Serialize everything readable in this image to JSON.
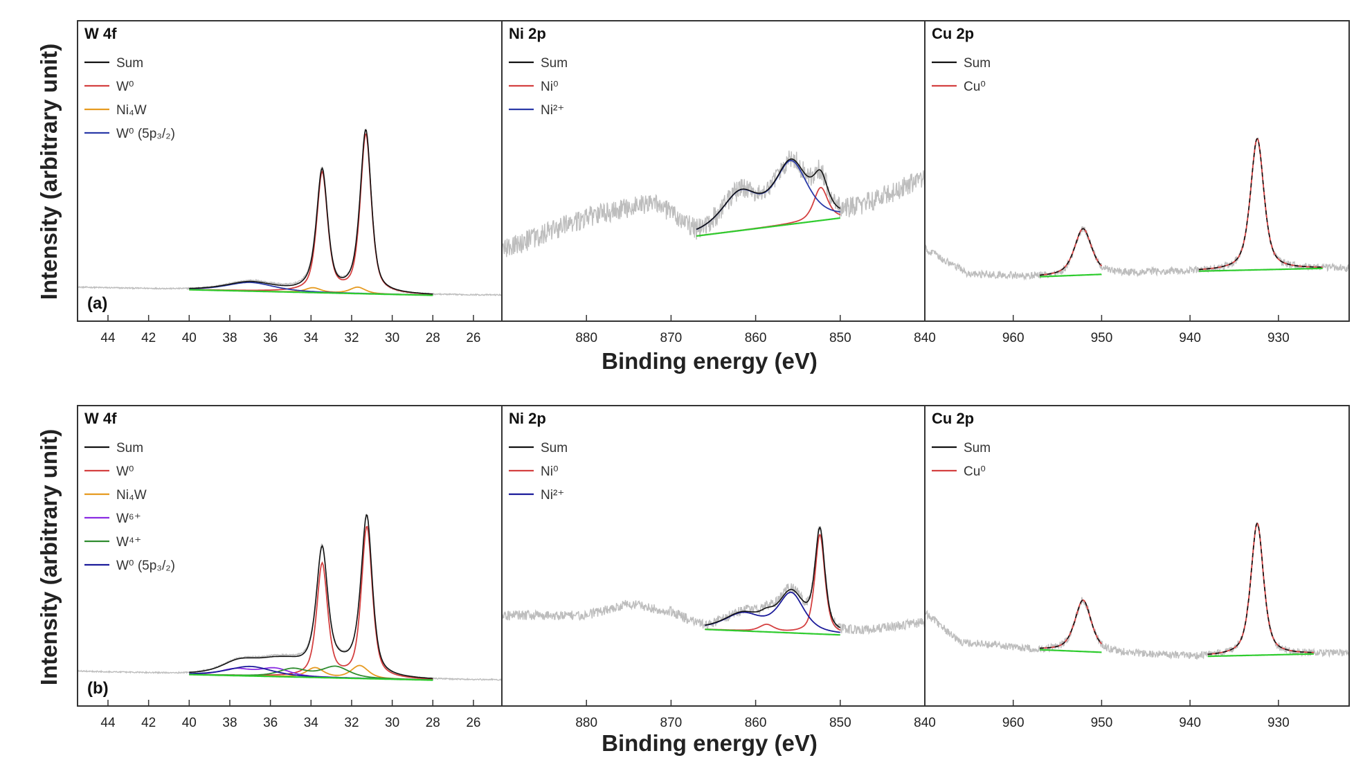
{
  "chart_data": {
    "type": "line",
    "ylabel": "Intensity (arbitrary unit)",
    "xlabel": "Binding energy (eV)",
    "rows": [
      {
        "label": "(a)",
        "panels": [
          {
            "title": "W 4f",
            "xlim": [
              45.5,
              24.6
            ],
            "ticks": [
              "44",
              "42",
              "40",
              "38",
              "36",
              "34",
              "32",
              "30",
              "28",
              "26"
            ],
            "tick_values": [
              44,
              42,
              40,
              38,
              36,
              34,
              32,
              30,
              28,
              26
            ],
            "legend": [
              {
                "label": "Sum",
                "color": "#111111"
              },
              {
                "label": "W⁰",
                "color": "#d44040"
              },
              {
                "label": "Ni₄W",
                "color": "#e69a20"
              },
              {
                "label": "W⁰ (5p₃/₂)",
                "color": "#2a3aa8"
              }
            ],
            "noise": 0.004,
            "raw_range": [
              45.5,
              24.6
            ],
            "fit_range": [
              40.0,
              28.0
            ],
            "baseline": [
              [
                45.5,
                0.05
              ],
              [
                40.0,
                0.035
              ],
              [
                34.0,
                0.03
              ],
              [
                30.0,
                0.0
              ],
              [
                24.6,
                0.0
              ]
            ],
            "components": [
              {
                "name": "W⁰",
                "color": "#d44040",
                "peaks": [
                  {
                    "x": 31.3,
                    "h": 1.0,
                    "w": 0.32
                  },
                  {
                    "x": 33.45,
                    "h": 0.75,
                    "w": 0.32
                  }
                ]
              },
              {
                "name": "Ni₄W",
                "color": "#e69a20",
                "peaks": [
                  {
                    "x": 31.7,
                    "h": 0.04,
                    "w": 0.45
                  },
                  {
                    "x": 33.9,
                    "h": 0.03,
                    "w": 0.45
                  }
                ]
              },
              {
                "name": "W⁰ (5p₃/₂)",
                "color": "#2a3aa8",
                "peaks": [
                  {
                    "x": 37.0,
                    "h": 0.055,
                    "w": 1.4
                  }
                ]
              }
            ],
            "background_color": "#2ecc2e"
          },
          {
            "title": "Ni 2p",
            "xlim": [
              890,
              840
            ],
            "ticks": [
              "880",
              "870",
              "860",
              "850",
              "840"
            ],
            "tick_values": [
              880,
              870,
              860,
              850,
              840
            ],
            "legend": [
              {
                "label": "Sum",
                "color": "#111111"
              },
              {
                "label": "Ni⁰",
                "color": "#d44040"
              },
              {
                "label": "Ni²⁺",
                "color": "#2a3aa8"
              }
            ],
            "noise": 0.07,
            "raw_range": [
              890,
              840
            ],
            "fit_range": [
              867,
              850
            ],
            "baseline": [
              [
                890,
                0.1
              ],
              [
                880,
                0.32
              ],
              [
                872,
                0.42
              ],
              [
                867,
                0.2
              ],
              [
                850,
                0.32
              ],
              [
                845,
                0.45
              ],
              [
                840,
                0.58
              ]
            ],
            "components": [
              {
                "name": "Ni⁰",
                "color": "#d44040",
                "peaks": [
                  {
                    "x": 852.3,
                    "h": 0.22,
                    "w": 1.0
                  }
                ]
              },
              {
                "name": "Ni²⁺",
                "color": "#2a3aa8",
                "peaks": [
                  {
                    "x": 855.8,
                    "h": 0.4,
                    "w": 2.3
                  },
                  {
                    "x": 861.8,
                    "h": 0.24,
                    "w": 2.6
                  }
                ]
              }
            ],
            "background_color": "#2ecc2e"
          },
          {
            "title": "Cu 2p",
            "xlim": [
              970,
              922
            ],
            "ticks": [
              "960",
              "950",
              "940",
              "930"
            ],
            "tick_values": [
              960,
              950,
              940,
              930
            ],
            "legend": [
              {
                "label": "Sum",
                "color": "#111111"
              },
              {
                "label": "Cu⁰",
                "color": "#d44040"
              }
            ],
            "noise": 0.025,
            "raw_range": [
              970,
              922
            ],
            "fit_ranges": [
              [
                957,
                950
              ],
              [
                939,
                925
              ]
            ],
            "baseline": [
              [
                970,
                0.25
              ],
              [
                965,
                0.08
              ],
              [
                955,
                0.06
              ],
              [
                950,
                0.08
              ],
              [
                940,
                0.1
              ],
              [
                925,
                0.12
              ],
              [
                922,
                0.12
              ]
            ],
            "components": [
              {
                "name": "Cu⁰",
                "color": "#d44040",
                "peaks": [
                  {
                    "x": 932.4,
                    "h": 0.88,
                    "w": 0.9
                  },
                  {
                    "x": 952.1,
                    "h": 0.31,
                    "w": 1.15
                  }
                ]
              }
            ],
            "background_color": "#2ecc2e"
          }
        ]
      },
      {
        "label": "(b)",
        "panels": [
          {
            "title": "W 4f",
            "xlim": [
              45.5,
              24.6
            ],
            "ticks": [
              "44",
              "42",
              "40",
              "38",
              "36",
              "34",
              "32",
              "30",
              "28",
              "26"
            ],
            "tick_values": [
              44,
              42,
              40,
              38,
              36,
              34,
              32,
              30,
              28,
              26
            ],
            "legend": [
              {
                "label": "Sum",
                "color": "#111111"
              },
              {
                "label": "W⁰",
                "color": "#d44040"
              },
              {
                "label": "Ni₄W",
                "color": "#e69a20"
              },
              {
                "label": "W⁶⁺",
                "color": "#8a2be2"
              },
              {
                "label": "W⁴⁺",
                "color": "#2e8b2e"
              },
              {
                "label": "W⁰ (5p₃/₂)",
                "color": "#1a1a9a"
              }
            ],
            "noise": 0.004,
            "raw_range": [
              45.5,
              24.6
            ],
            "fit_range": [
              40.0,
              28.0
            ],
            "baseline": [
              [
                45.5,
                0.055
              ],
              [
                40.0,
                0.035
              ],
              [
                34.0,
                0.03
              ],
              [
                30.0,
                0.0
              ],
              [
                24.6,
                0.0
              ]
            ],
            "components": [
              {
                "name": "W⁰",
                "color": "#d44040",
                "peaks": [
                  {
                    "x": 31.25,
                    "h": 0.95,
                    "w": 0.32
                  },
                  {
                    "x": 33.45,
                    "h": 0.71,
                    "w": 0.32
                  }
                ]
              },
              {
                "name": "Ni₄W",
                "color": "#e69a20",
                "peaks": [
                  {
                    "x": 31.6,
                    "h": 0.08,
                    "w": 0.5
                  },
                  {
                    "x": 33.8,
                    "h": 0.06,
                    "w": 0.5
                  }
                ]
              },
              {
                "name": "W⁶⁺",
                "color": "#8a2be2",
                "peaks": [
                  {
                    "x": 35.8,
                    "h": 0.05,
                    "w": 0.9
                  },
                  {
                    "x": 37.7,
                    "h": 0.04,
                    "w": 0.9
                  }
                ]
              },
              {
                "name": "W⁴⁺",
                "color": "#2e8b2e",
                "peaks": [
                  {
                    "x": 32.8,
                    "h": 0.07,
                    "w": 0.8
                  },
                  {
                    "x": 34.9,
                    "h": 0.05,
                    "w": 0.8
                  }
                ]
              },
              {
                "name": "W⁰ (5p₃/₂)",
                "color": "#1a1a9a",
                "peaks": [
                  {
                    "x": 37.0,
                    "h": 0.06,
                    "w": 1.3
                  }
                ]
              }
            ],
            "background_color": "#2ecc2e"
          },
          {
            "title": "Ni 2p",
            "xlim": [
              890,
              840
            ],
            "ticks": [
              "880",
              "870",
              "860",
              "850",
              "840"
            ],
            "tick_values": [
              880,
              870,
              860,
              850,
              840
            ],
            "legend": [
              {
                "label": "Sum",
                "color": "#111111"
              },
              {
                "label": "Ni⁰",
                "color": "#d44040"
              },
              {
                "label": "Ni²⁺",
                "color": "#1a1a9a"
              }
            ],
            "noise": 0.035,
            "raw_range": [
              890,
              840
            ],
            "fit_range": [
              866,
              850
            ],
            "baseline": [
              [
                890,
                0.38
              ],
              [
                880,
                0.38
              ],
              [
                875,
                0.46
              ],
              [
                870,
                0.4
              ],
              [
                866,
                0.28
              ],
              [
                858,
                0.28
              ],
              [
                850,
                0.24
              ],
              [
                845,
                0.28
              ],
              [
                840,
                0.33
              ]
            ],
            "components": [
              {
                "name": "Ni⁰",
                "color": "#d44040",
                "peaks": [
                  {
                    "x": 852.4,
                    "h": 0.72,
                    "w": 0.7
                  },
                  {
                    "x": 858.7,
                    "h": 0.05,
                    "w": 1.0
                  }
                ]
              },
              {
                "name": "Ni²⁺",
                "color": "#1a1a9a",
                "peaks": [
                  {
                    "x": 855.8,
                    "h": 0.28,
                    "w": 1.8
                  },
                  {
                    "x": 861.5,
                    "h": 0.12,
                    "w": 2.6
                  }
                ]
              }
            ],
            "background_color": "#2ecc2e"
          },
          {
            "title": "Cu 2p",
            "xlim": [
              970,
              922
            ],
            "ticks": [
              "960",
              "950",
              "940",
              "930"
            ],
            "tick_values": [
              960,
              950,
              940,
              930
            ],
            "legend": [
              {
                "label": "Sum",
                "color": "#111111"
              },
              {
                "label": "Cu⁰",
                "color": "#d44040"
              }
            ],
            "noise": 0.025,
            "raw_range": [
              970,
              922
            ],
            "fit_ranges": [
              [
                957,
                950
              ],
              [
                938,
                926
              ]
            ],
            "baseline": [
              [
                970,
                0.4
              ],
              [
                966,
                0.2
              ],
              [
                958,
                0.15
              ],
              [
                950,
                0.13
              ],
              [
                940,
                0.1
              ],
              [
                925,
                0.12
              ],
              [
                922,
                0.12
              ]
            ],
            "components": [
              {
                "name": "Cu⁰",
                "color": "#d44040",
                "peaks": [
                  {
                    "x": 932.4,
                    "h": 0.9,
                    "w": 0.85
                  },
                  {
                    "x": 952.1,
                    "h": 0.35,
                    "w": 1.1
                  }
                ]
              }
            ],
            "background_color": "#2ecc2e"
          }
        ]
      }
    ]
  }
}
